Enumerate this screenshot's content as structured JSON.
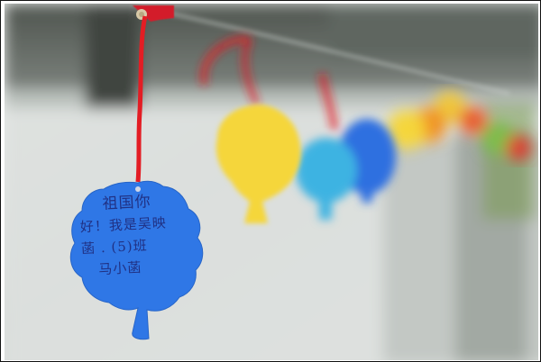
{
  "scene": {
    "description_kind": "photo",
    "colors": {
      "background_light": "#e9eaea",
      "background_mid": "#cfd3d1",
      "wall_dark": "#59605a",
      "ribbon_red": "#e31d24",
      "tag_blue": "#2f77e6",
      "tag_yellow": "#f5d63a",
      "tag_cyan": "#3eb3e2",
      "tag_orange": "#f1a11f",
      "clip_red": "#d31f2b",
      "ink": "#1f2a7a"
    }
  },
  "tag_note": {
    "lines": [
      "祖国你",
      "好！我是吴映",
      "菡 . (5)班",
      "马小菡"
    ]
  }
}
